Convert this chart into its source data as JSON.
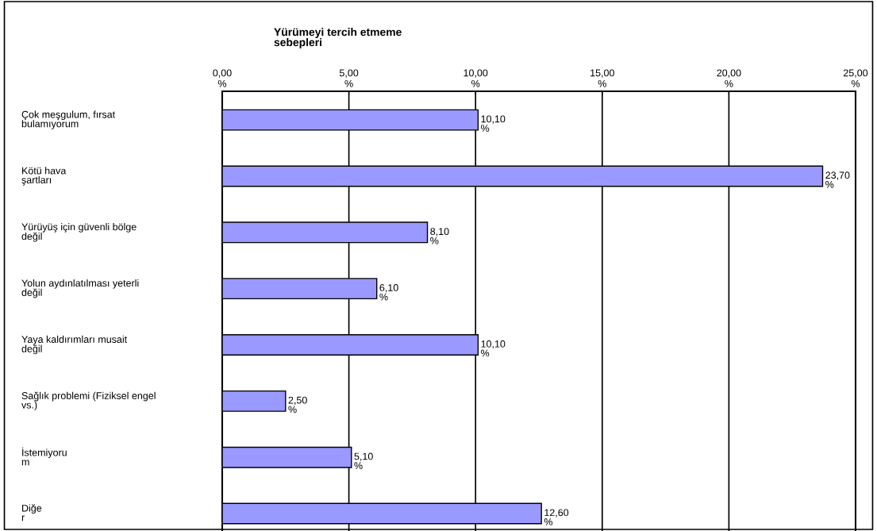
{
  "chart_data": {
    "type": "bar",
    "orientation": "horizontal",
    "title": "Yürümeyi tercih etmeme\nsebepleri",
    "categories": [
      "Çok meşgulum, fırsat\nbulamıyorum",
      "Kötü hava\nşartları",
      "Yürüyüş için güvenli bölge\ndeğil",
      "Yolun aydınlatılması yeterli\ndeğil",
      "Yaya kaldırımları musait\ndeğil",
      "Sağlık problemi (Fiziksel engel\nvs.)",
      "İstemiyoru\nm",
      "Diğe\nr"
    ],
    "values": [
      10.1,
      23.7,
      8.1,
      6.1,
      10.1,
      2.5,
      5.1,
      12.6
    ],
    "value_labels": [
      "10,10\n%",
      "23,70\n%",
      "8,10\n%",
      "6,10\n%",
      "10,10\n%",
      "2,50\n%",
      "5,10\n%",
      "12,60\n%"
    ],
    "color": "#9999ff",
    "xlim": [
      0,
      25
    ],
    "xticks": [
      {
        "value": 0,
        "label": "0,00\n%"
      },
      {
        "value": 5,
        "label": "5,00\n%"
      },
      {
        "value": 10,
        "label": "10,00\n%"
      },
      {
        "value": 15,
        "label": "15,00\n%"
      },
      {
        "value": 20,
        "label": "20,00\n%"
      },
      {
        "value": 25,
        "label": "25,00\n%"
      }
    ],
    "grid": "x",
    "legend": false
  }
}
